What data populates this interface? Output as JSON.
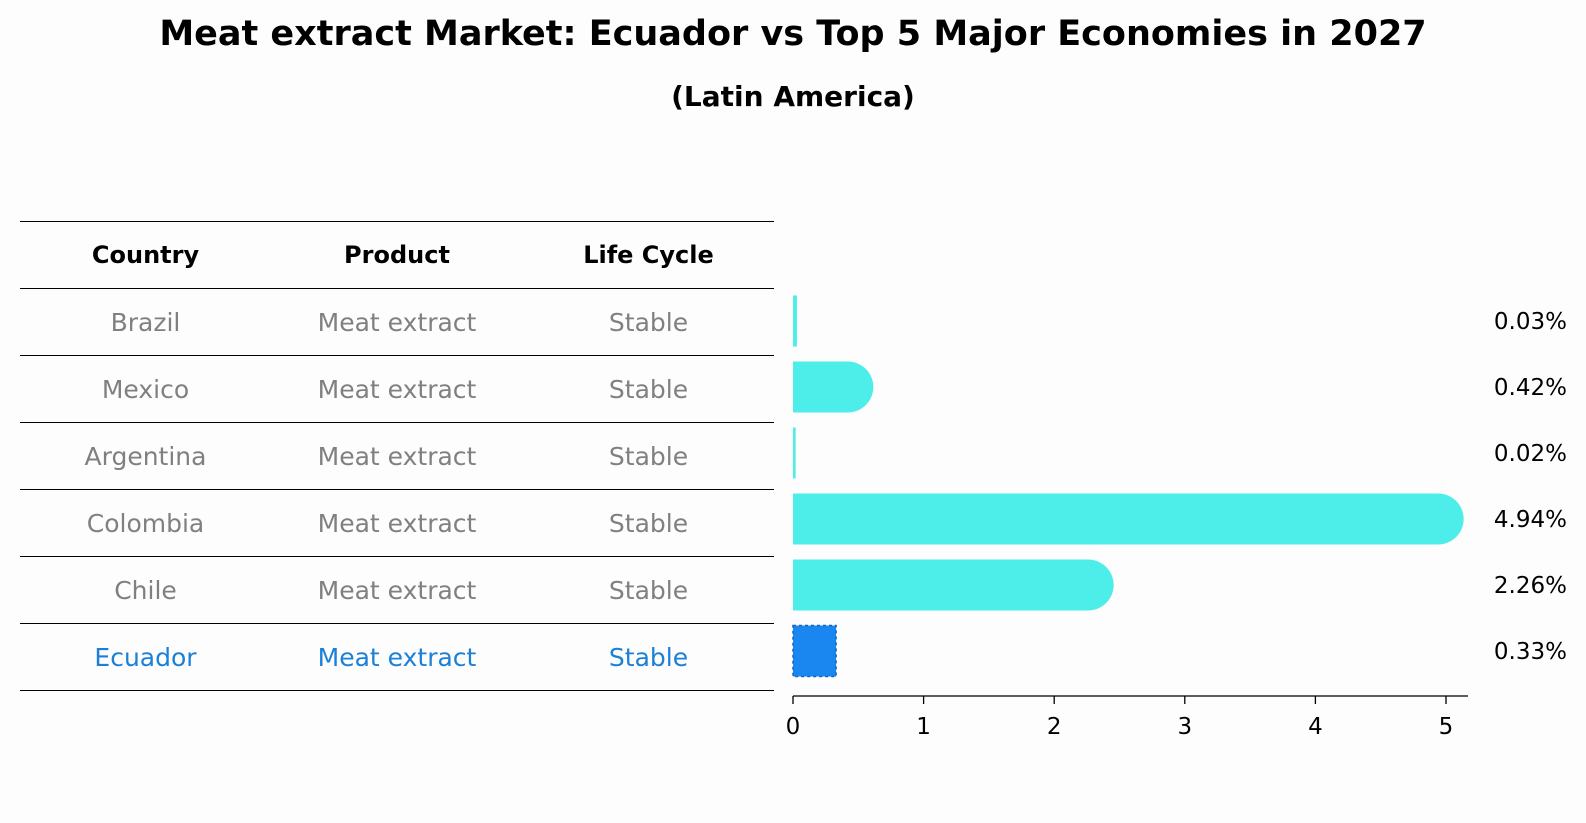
{
  "chart_data": {
    "type": "bar",
    "orientation": "horizontal",
    "title": "Meat extract Market: Ecuador vs Top 5 Major Economies in 2027",
    "subtitle": "(Latin America)",
    "table": {
      "headers": [
        "Country",
        "Product",
        "Life Cycle"
      ],
      "rows": [
        {
          "country": "Brazil",
          "product": "Meat extract",
          "life_cycle": "Stable"
        },
        {
          "country": "Mexico",
          "product": "Meat extract",
          "life_cycle": "Stable"
        },
        {
          "country": "Argentina",
          "product": "Meat extract",
          "life_cycle": "Stable"
        },
        {
          "country": "Colombia",
          "product": "Meat extract",
          "life_cycle": "Stable"
        },
        {
          "country": "Chile",
          "product": "Meat extract",
          "life_cycle": "Stable"
        },
        {
          "country": "Ecuador",
          "product": "Meat extract",
          "life_cycle": "Stable"
        }
      ]
    },
    "categories": [
      "Brazil",
      "Mexico",
      "Argentina",
      "Colombia",
      "Chile",
      "Ecuador"
    ],
    "values": [
      0.03,
      0.42,
      0.02,
      4.94,
      2.26,
      0.33
    ],
    "value_labels": [
      "0.03%",
      "0.42%",
      "0.02%",
      "4.94%",
      "2.26%",
      "0.33%"
    ],
    "highlight": "Ecuador",
    "xlim": [
      0,
      5.2
    ],
    "xticks": [
      "0",
      "1",
      "2",
      "3",
      "4",
      "5"
    ],
    "colors": {
      "bar": "#4deee9",
      "highlight": "#1a87f0",
      "highlight_text": "#1a80d8",
      "muted_text": "#808080"
    }
  }
}
